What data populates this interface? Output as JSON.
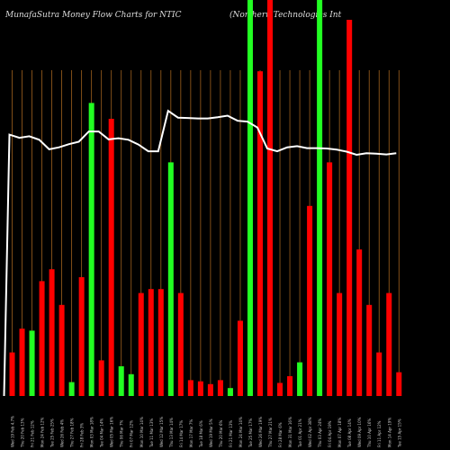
{
  "header": {
    "title": "MunafaSutra  Money Flow  Charts for NTIC",
    "company": "(Northern Technologies Int"
  },
  "colors": {
    "background": "#000000",
    "gridline": "#a0621e",
    "inflow": "#ff0000",
    "outflow": "#22ff22",
    "price_line": "#ffffff",
    "label_text": "#cccccc"
  },
  "chart_data": {
    "type": "bar",
    "title": "MunafaSutra  Money Flow  Charts for NTIC",
    "xlabel": "",
    "ylabel": "",
    "ylim": [
      0,
      100
    ],
    "grid": true,
    "categories": [
      "Wed 19 Feb 4.7%",
      "Thu 20 Feb 13%",
      "Fri 21 Feb 12%",
      "Mon 24 Feb 12%",
      "Tue 25 Feb 25%",
      "Wed 26 Feb 4%",
      "Thu 27 Feb 18%",
      "Fri 28 Feb 3%",
      "Mon 03 Mar 18%",
      "Tue 04 Mar 14%",
      "Wed 05 Mar 16%",
      "Thu 06 Mar 7%",
      "Fri 07 Mar 12%",
      "Mon 10 Mar 14%",
      "Tue 11 Mar 13%",
      "Wed 12 Mar 15%",
      "Thu 13 Mar 14%",
      "Fri 14 Mar 17%",
      "Mon 17 Mar 7%",
      "Tue 18 Mar 6%",
      "Wed 19 Mar 5%",
      "Thu 20 Mar 6%",
      "Fri 21 Mar 13%",
      "Mon 24 Mar 14%",
      "Tue 25 Mar 17%",
      "Wed 26 Mar 19%",
      "Thu 27 Mar 21%",
      "Fri 28 Mar 6%",
      "Mon 31 Mar 16%",
      "Tue 01 Apr 21%",
      "Wed 02 Apr 38%",
      "Thu 03 Apr 24%",
      "Fri 04 Apr 19%",
      "Mon 07 Apr 18%",
      "Tue 08 Apr 14%",
      "Wed 09 Apr 10%",
      "Thu 10 Apr 16%",
      "Fri 11 Apr 12%",
      "Mon 14 Apr 19%",
      "Tue 15 Apr 15%"
    ],
    "values": [
      11,
      17,
      16.5,
      29,
      32,
      23,
      3.5,
      30,
      74,
      9,
      70,
      7.5,
      5.5,
      26,
      27,
      27,
      59,
      26,
      4,
      3.7,
      3,
      4,
      2,
      19,
      100,
      82,
      100,
      3.3,
      5,
      8.5,
      48,
      100,
      59,
      26,
      95,
      37,
      23,
      11,
      26,
      6
    ],
    "flow": [
      "in",
      "in",
      "out",
      "in",
      "in",
      "in",
      "out",
      "in",
      "out",
      "in",
      "in",
      "out",
      "out",
      "in",
      "in",
      "in",
      "out",
      "in",
      "in",
      "in",
      "in",
      "in",
      "out",
      "in",
      "out",
      "in",
      "in",
      "in",
      "in",
      "out",
      "in",
      "out",
      "in",
      "in",
      "in",
      "in",
      "in",
      "in",
      "in",
      "in"
    ],
    "price_line": [
      66,
      65.2,
      65.6,
      64.7,
      62.3,
      62.8,
      63.6,
      64.2,
      66.8,
      66.8,
      64.8,
      65.1,
      64.7,
      63.5,
      61.8,
      61.8,
      72,
      70.3,
      70.2,
      70.1,
      70.1,
      70.4,
      70.8,
      69.5,
      69.3,
      67.8,
      62.5,
      61.8,
      62.8,
      63.1,
      62.6,
      62.6,
      62.5,
      62.2,
      61.7,
      60.9,
      61.3,
      61.2,
      61,
      61.3
    ]
  }
}
